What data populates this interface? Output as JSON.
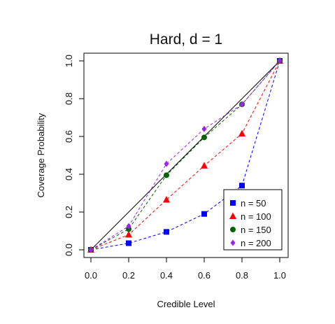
{
  "chart_data": {
    "type": "line",
    "title": "Hard, d = 1",
    "xlabel": "Credible Level",
    "ylabel": "Coverage Probability",
    "xlim": [
      0.0,
      1.0
    ],
    "ylim": [
      0.0,
      1.0
    ],
    "x_ticks": [
      "0.0",
      "0.2",
      "0.4",
      "0.6",
      "0.8",
      "1.0"
    ],
    "y_ticks": [
      "0.0",
      "0.2",
      "0.4",
      "0.6",
      "0.8",
      "1.0"
    ],
    "grid": false,
    "legend_position": "bottom-right",
    "reference_line": {
      "x": [
        0.0,
        1.0
      ],
      "y": [
        0.0,
        1.0
      ],
      "color": "#000000"
    },
    "x": [
      0.0,
      0.2,
      0.4,
      0.6,
      0.8,
      1.0
    ],
    "series": [
      {
        "name": "n = 50",
        "color": "#0000ff",
        "marker": "square",
        "values": [
          0.0,
          0.035,
          0.095,
          0.19,
          0.34,
          1.0
        ]
      },
      {
        "name": "n = 100",
        "color": "#ff0000",
        "marker": "triangle",
        "values": [
          0.0,
          0.08,
          0.265,
          0.445,
          0.615,
          1.0
        ]
      },
      {
        "name": "n = 150",
        "color": "#006400",
        "marker": "circle",
        "values": [
          0.0,
          0.11,
          0.395,
          0.595,
          0.77,
          1.0
        ]
      },
      {
        "name": "n = 200",
        "color": "#a020f0",
        "marker": "diamond",
        "values": [
          0.0,
          0.125,
          0.455,
          0.64,
          0.77,
          1.0
        ]
      }
    ]
  }
}
